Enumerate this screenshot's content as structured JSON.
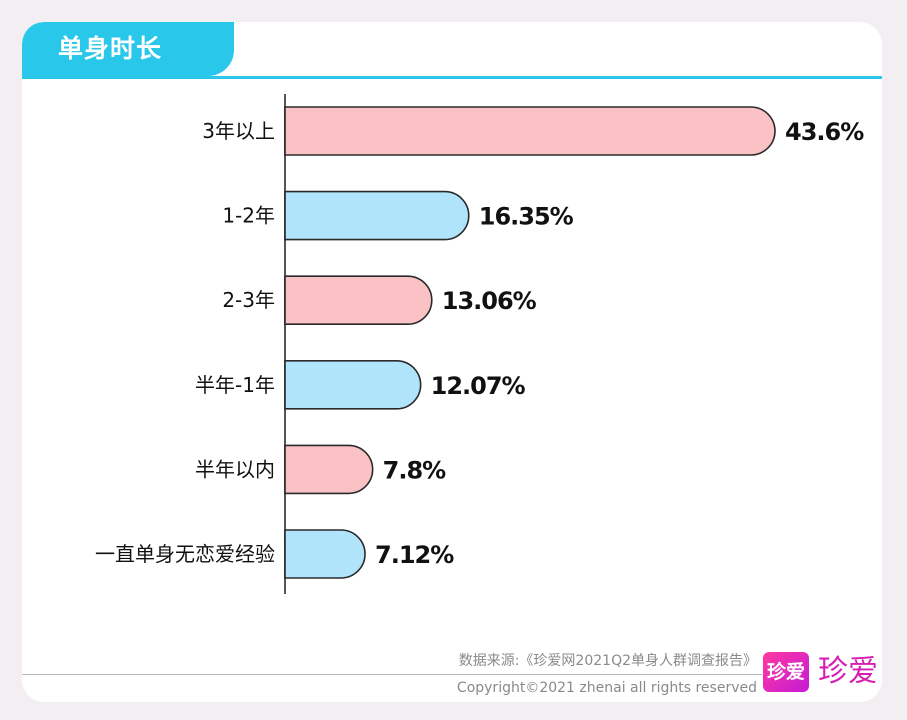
{
  "header": {
    "title": "单身时长"
  },
  "chart_data": {
    "type": "bar",
    "orientation": "horizontal",
    "title": "单身时长",
    "categories": [
      "3年以上",
      "1-2年",
      "2-3年",
      "半年-1年",
      "半年以内",
      "一直单身无恋爱经验"
    ],
    "values": [
      43.6,
      16.35,
      13.06,
      12.07,
      7.8,
      7.12
    ],
    "value_labels": [
      "43.6%",
      "16.35%",
      "13.06%",
      "12.07%",
      "7.8%",
      "7.12%"
    ],
    "bar_colors": [
      "#fbc2c6",
      "#b0e4fb",
      "#fbc2c6",
      "#b0e4fb",
      "#fbc2c6",
      "#b0e4fb"
    ],
    "xlim": [
      0,
      43.6
    ],
    "grid": false,
    "legend": "none"
  },
  "footer": {
    "source": "数据来源:《珍爱网2021Q2单身人群调查报告》",
    "copyright": "Copyright©2021  zhenai  all rights reserved"
  },
  "brand": {
    "logo_mark": "珍爱",
    "name": "珍爱",
    "accent_color": "#29c7ea",
    "brand_color": "#d61eb4"
  }
}
